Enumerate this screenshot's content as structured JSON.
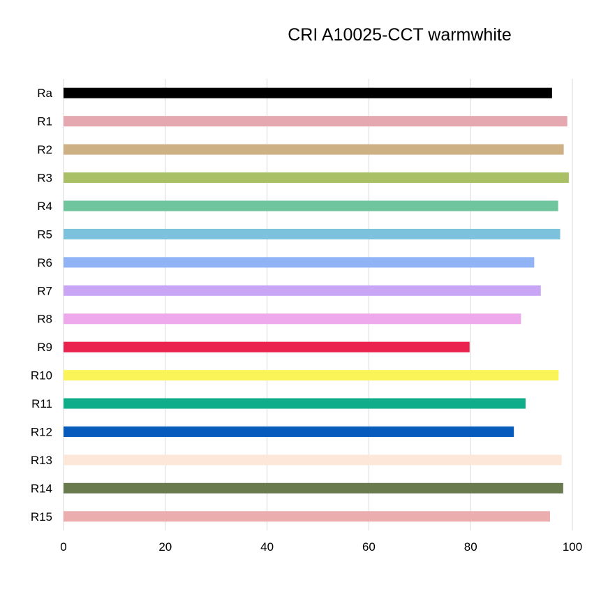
{
  "chart_data": {
    "type": "bar",
    "orientation": "horizontal",
    "title": "CRI A10025-CCT warmwhite",
    "xlabel": "",
    "ylabel": "",
    "xlim": [
      0,
      100
    ],
    "xticks": [
      0,
      20,
      40,
      60,
      80,
      100
    ],
    "grid": "vertical",
    "legend": "none",
    "categories": [
      "Ra",
      "R1",
      "R2",
      "R3",
      "R4",
      "R5",
      "R6",
      "R7",
      "R8",
      "R9",
      "R10",
      "R11",
      "R12",
      "R13",
      "R14",
      "R15"
    ],
    "values": [
      96,
      99,
      98.3,
      99.3,
      97.2,
      97.6,
      92.5,
      93.8,
      89.9,
      79.8,
      97.3,
      90.8,
      88.5,
      97.9,
      98.2,
      95.6
    ],
    "colors": [
      "#000000",
      "#e6a8b0",
      "#cdb185",
      "#a9c066",
      "#6fc59e",
      "#7dc2dc",
      "#8fb3f5",
      "#c9a6f5",
      "#eda9eb",
      "#e9234e",
      "#fbf459",
      "#10ad8a",
      "#065bbd",
      "#fde7d9",
      "#687a4e",
      "#ebadae"
    ]
  }
}
